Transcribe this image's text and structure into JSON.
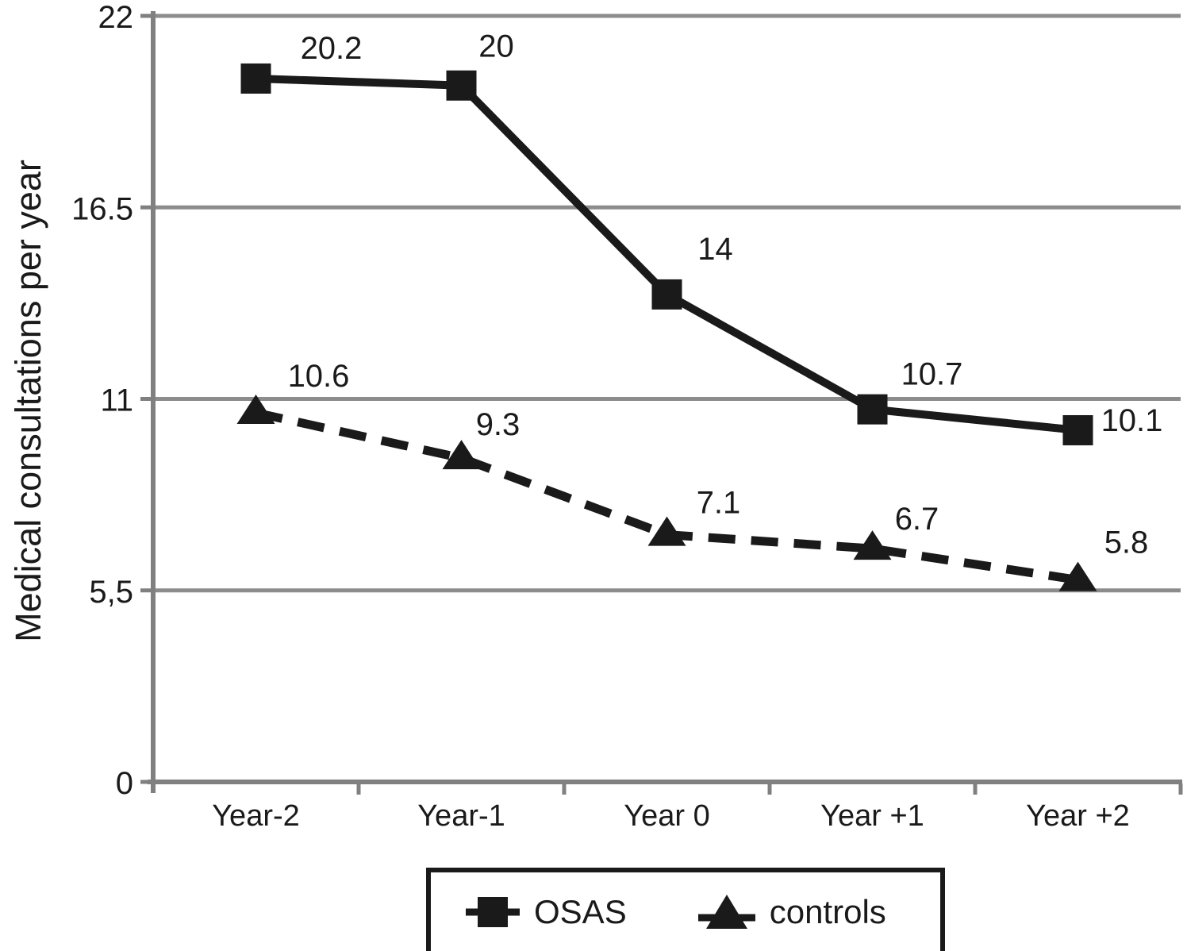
{
  "chart_data": {
    "type": "line",
    "title": "",
    "xlabel": "",
    "ylabel": "Medical consultations per year",
    "categories": [
      "Year-2",
      "Year-1",
      "Year 0",
      "Year +1",
      "Year +2"
    ],
    "series": [
      {
        "name": "OSAS",
        "values": [
          20.2,
          20,
          14,
          10.7,
          10.1
        ],
        "labels": [
          "20.2",
          "20",
          "14",
          "10.7",
          "10.1"
        ],
        "marker": "square",
        "line_style": "solid",
        "color": "#1a1a1a"
      },
      {
        "name": "controls",
        "values": [
          10.6,
          9.3,
          7.1,
          6.7,
          5.8
        ],
        "labels": [
          "10.6",
          "9.3",
          "7.1",
          "6.7",
          "5.8"
        ],
        "marker": "triangle",
        "line_style": "dashed",
        "color": "#1a1a1a"
      }
    ],
    "y_axis": {
      "min": 0,
      "max": 22,
      "ticks": [
        {
          "value": 22,
          "label": "22"
        },
        {
          "value": 16.5,
          "label": "16.5"
        },
        {
          "value": 11,
          "label": "11"
        },
        {
          "value": 5.5,
          "label": "5,5"
        },
        {
          "value": 0,
          "label": "0"
        }
      ],
      "grid": true
    },
    "legend_position": "bottom",
    "colors": {
      "grid": "#8c8c8c",
      "axis": "#808080",
      "series": "#1a1a1a",
      "text": "#1a1a1a",
      "background": "#ffffff"
    }
  }
}
